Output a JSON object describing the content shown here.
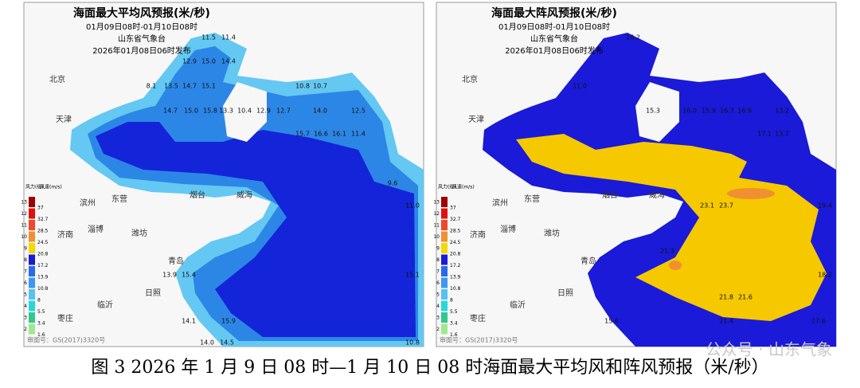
{
  "panels": [
    {
      "title": "海面最大平均风预报(米/秒)",
      "period": "01月09日08时-01月10日08时",
      "issuer": "山东省气象台",
      "issued": "2026年01月08日06时发布",
      "credit": "审图号：GS(2017)3320号",
      "stations": [
        "11.5",
        "11.4",
        "12.9",
        "15.0",
        "14.4",
        "8.1",
        "13.5",
        "14.7",
        "15.1",
        "10.8",
        "10.7",
        "14.7",
        "15.0",
        "15.8",
        "13.3",
        "10.4",
        "12.9",
        "12.7",
        "14.0",
        "12.5",
        "15.7",
        "16.6",
        "16.1",
        "11.4",
        "9.6",
        "11.0",
        "15.1",
        "13.9",
        "15.4",
        "14.1",
        "15.9",
        "14.0",
        "14.5",
        "10.8"
      ]
    },
    {
      "title": "海面最大阵风预报(米/秒)",
      "period": "01月09日08时-01月10日08时",
      "issuer": "山东省气象台",
      "issued": "2026年01月08日06时发布",
      "credit": "审图号：GS(2017)3320号",
      "stations": [
        "16.2",
        "11.0",
        "15.3",
        "16.0",
        "15.9",
        "16.7",
        "16.9",
        "13.2",
        "17.1",
        "13.7",
        "23.1",
        "23.7",
        "19.4",
        "21.3",
        "18.2",
        "21.8",
        "21.6",
        "21.4",
        "17.6",
        "15.6"
      ]
    }
  ],
  "cities": [
    "北京",
    "天津",
    "东营",
    "滨州",
    "济南",
    "淄博",
    "潍坊",
    "烟台",
    "威海",
    "青岛",
    "日照",
    "临沂",
    "枣庄"
  ],
  "legend": {
    "level_header": "风力(级)",
    "speed_header": "风速(m/s)",
    "levels": [
      13,
      12,
      11,
      10,
      9,
      8,
      7,
      6,
      5,
      4,
      3,
      2
    ],
    "speeds": [
      37,
      32.7,
      28.5,
      24.5,
      20.8,
      17.2,
      13.9,
      10.8,
      8,
      5.5,
      3.4,
      1.6
    ],
    "colors": [
      "#a00000",
      "#e01010",
      "#f04828",
      "#f09030",
      "#f5d800",
      "#1a1ad8",
      "#2a6ae8",
      "#3c98f0",
      "#58c0f4",
      "#28d8d8",
      "#30c890",
      "#a0e890"
    ]
  },
  "caption": "图 3 2026 年 1 月 9 日 08 时—1 月 10 日 08 时海面最大平均风和阵风预报（米/秒）",
  "watermark": "公众号 · 山东气象"
}
